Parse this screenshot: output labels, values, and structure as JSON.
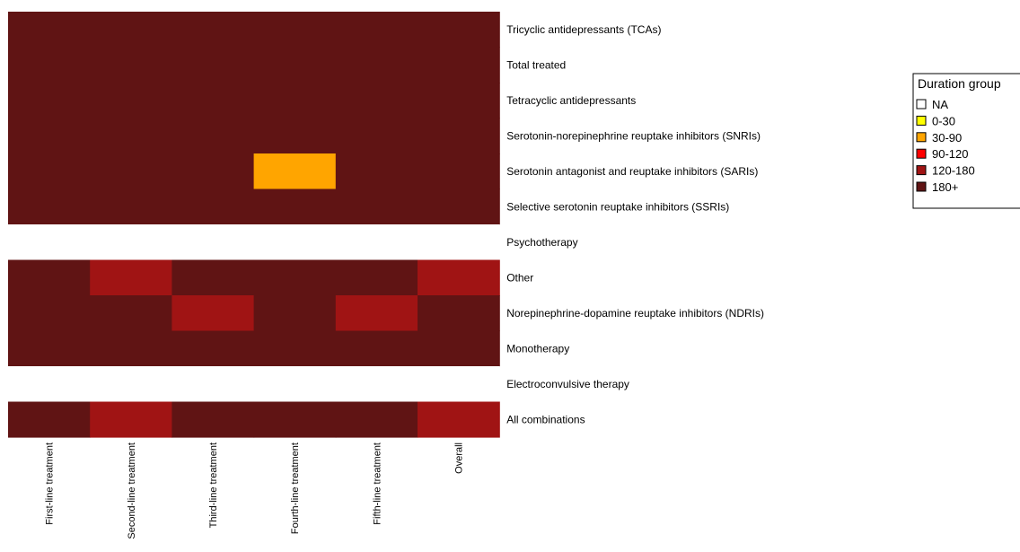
{
  "chart_data": {
    "type": "heatmap",
    "title": "",
    "columns": [
      "First-line treatment",
      "Second-line treatment",
      "Third-line treatment",
      "Fourth-line treatment",
      "Fifth-line treatment",
      "Overall"
    ],
    "rows": [
      "Tricyclic antidepressants (TCAs)",
      "Total treated",
      "Tetracyclic antidepressants",
      "Serotonin-norepinephrine reuptake inhibitors (SNRIs)",
      "Serotonin antagonist and reuptake inhibitors (SARIs)",
      "Selective serotonin reuptake inhibitors (SSRIs)",
      "Psychotherapy",
      "Other",
      "Norepinephrine-dopamine reuptake inhibitors (NDRIs)",
      "Monotherapy",
      "Electroconvulsive therapy",
      "All combinations"
    ],
    "values": [
      [
        "180+",
        "180+",
        "180+",
        "180+",
        "180+",
        "180+"
      ],
      [
        "180+",
        "180+",
        "180+",
        "180+",
        "180+",
        "180+"
      ],
      [
        "180+",
        "180+",
        "180+",
        "180+",
        "180+",
        "180+"
      ],
      [
        "180+",
        "180+",
        "180+",
        "180+",
        "180+",
        "180+"
      ],
      [
        "180+",
        "180+",
        "180+",
        "30-90",
        "180+",
        "180+"
      ],
      [
        "180+",
        "180+",
        "180+",
        "180+",
        "180+",
        "180+"
      ],
      [
        "NA",
        "NA",
        "NA",
        "NA",
        "NA",
        "NA"
      ],
      [
        "180+",
        "120-180",
        "180+",
        "180+",
        "180+",
        "120-180"
      ],
      [
        "180+",
        "180+",
        "120-180",
        "180+",
        "120-180",
        "180+"
      ],
      [
        "180+",
        "180+",
        "180+",
        "180+",
        "180+",
        "180+"
      ],
      [
        "NA",
        "NA",
        "NA",
        "NA",
        "NA",
        "NA"
      ],
      [
        "180+",
        "120-180",
        "180+",
        "180+",
        "180+",
        "120-180"
      ]
    ],
    "legend": {
      "title": "Duration group",
      "position": "right",
      "items": [
        {
          "label": "NA",
          "color": "#ffffff"
        },
        {
          "label": "0-30",
          "color": "#ffff00"
        },
        {
          "label": "30-90",
          "color": "#ffa500"
        },
        {
          "label": "90-120",
          "color": "#ff0000"
        },
        {
          "label": "120-180",
          "color": "#a01414"
        },
        {
          "label": "180+",
          "color": "#601414"
        }
      ]
    }
  }
}
